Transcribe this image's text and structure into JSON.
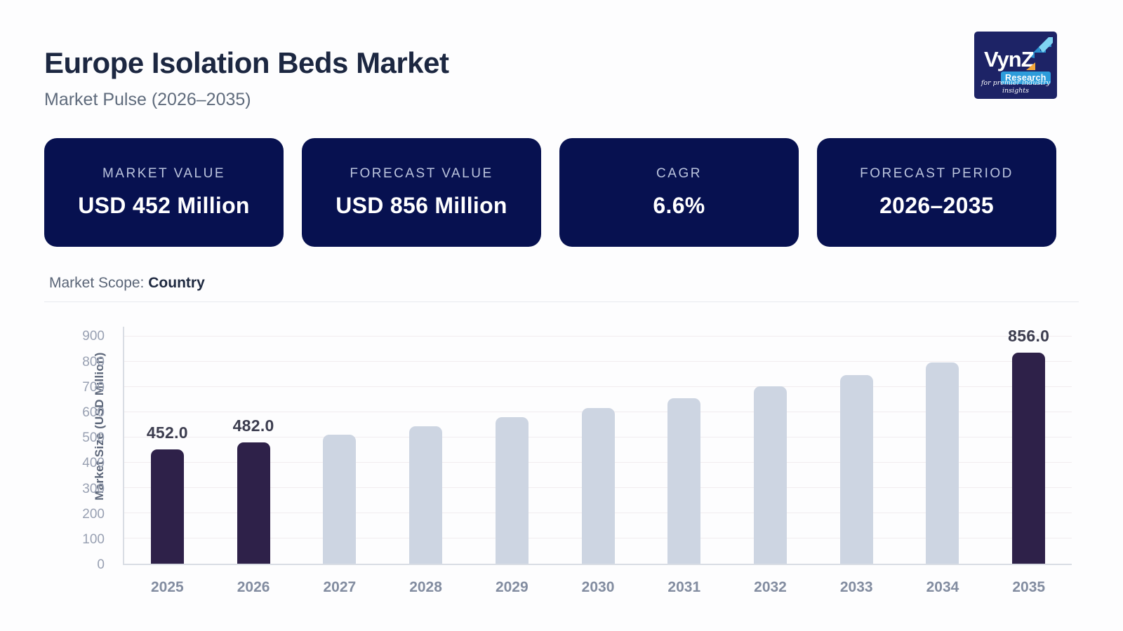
{
  "header": {
    "title": "Europe Isolation Beds Market",
    "subtitle": "Market Pulse (2026–2035)"
  },
  "logo": {
    "brand": "VynZ",
    "sub_label": "Research",
    "tagline": "for premier industry insights"
  },
  "cards": [
    {
      "label": "MARKET VALUE",
      "value": "USD 452 Million"
    },
    {
      "label": "FORECAST VALUE",
      "value": "USD 856 Million"
    },
    {
      "label": "CAGR",
      "value": "6.6%"
    },
    {
      "label": "FORECAST PERIOD",
      "value": "2026–2035"
    }
  ],
  "scope": {
    "label": "Market Scope:",
    "value": "Country"
  },
  "colors": {
    "card_navy": "#071150",
    "bar_highlight": "#2E2149",
    "bar_default": "#CDD5E2",
    "logo_navy": "#1D2366",
    "logo_blue": "#2D9CDB",
    "logo_orange": "#F2A73B"
  },
  "chart_data": {
    "type": "bar",
    "title": "",
    "xlabel": "",
    "ylabel": "Market Size (USD Million)",
    "ylim": [
      0,
      900
    ],
    "ytick_step": 100,
    "grid": true,
    "categories": [
      "2025",
      "2026",
      "2027",
      "2028",
      "2029",
      "2030",
      "2031",
      "2032",
      "2033",
      "2034",
      "2035"
    ],
    "values": [
      452,
      482,
      512,
      545,
      580,
      617,
      657,
      705,
      748,
      799,
      856
    ],
    "data_labels": {
      "2025": "452.0",
      "2026": "482.0",
      "2035": "856.0"
    },
    "highlighted_categories": [
      "2025",
      "2026",
      "2035"
    ]
  }
}
